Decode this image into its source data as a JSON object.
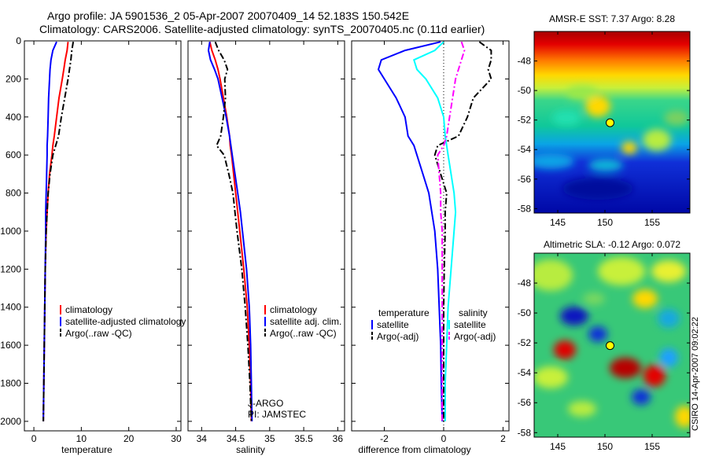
{
  "header": {
    "line1": "Argo profile: JA 5901536_2 05-Apr-2007 20070409_14 52.183S 150.542E",
    "line2": "Climatology: CARS2006. Satellite-adjusted climatology: synTS_20070405.nc (0.11d earlier)"
  },
  "stamp": "CSIRO 14-Apr-2007 09:02:22",
  "colors": {
    "climatology": "#ff0000",
    "satellite": "#0000ff",
    "argo": "#000000",
    "salinity_satellite": "#00ffff",
    "salinity_argo": "#ff00ff"
  },
  "chart_data": [
    {
      "type": "line",
      "xlabel": "temperature",
      "ylabel": "",
      "xlim": [
        -2,
        31
      ],
      "ylim": [
        2050,
        0
      ],
      "y_reversed": true,
      "xticks": [
        0,
        10,
        20,
        30
      ],
      "yticks": [
        0,
        200,
        400,
        600,
        800,
        1000,
        1200,
        1400,
        1600,
        1800,
        2000
      ],
      "depth": [
        5,
        50,
        100,
        150,
        200,
        300,
        400,
        500,
        550,
        600,
        700,
        800,
        900,
        1000,
        1200,
        1400,
        1600,
        1800,
        2000
      ],
      "series": [
        {
          "name": "climatology",
          "color": "#ff0000",
          "style": "solid",
          "values": [
            7.2,
            7.0,
            6.6,
            6.3,
            6.0,
            5.3,
            4.8,
            4.3,
            4.0,
            3.8,
            3.3,
            3.0,
            2.8,
            2.6,
            2.4,
            2.3,
            2.2,
            2.1,
            2.0
          ]
        },
        {
          "name": "satellite-adjusted climatology",
          "color": "#0000ff",
          "style": "solid",
          "values": [
            4.8,
            4.0,
            3.6,
            3.4,
            3.3,
            3.1,
            3.0,
            2.9,
            2.8,
            2.8,
            2.7,
            2.6,
            2.5,
            2.5,
            2.4,
            2.3,
            2.2,
            2.1,
            2.0
          ]
        },
        {
          "name": "Argo(..raw -QC)",
          "color": "#000000",
          "style": "dashdot",
          "values": [
            8.3,
            8.0,
            7.8,
            7.5,
            7.2,
            6.5,
            5.8,
            5.2,
            4.6,
            4.0,
            3.4,
            3.0,
            2.8,
            2.6,
            2.4,
            2.3,
            2.2,
            2.1,
            2.0
          ]
        }
      ],
      "legend": {
        "position": "bottom-right",
        "entries": [
          "climatology",
          "satellite-adjusted climatology",
          "Argo(..raw -QC)"
        ]
      }
    },
    {
      "type": "line",
      "xlabel": "salinity",
      "ylabel": "",
      "xlim": [
        33.8,
        36.1
      ],
      "ylim": [
        2050,
        0
      ],
      "y_reversed": true,
      "xticks": [
        34,
        34.5,
        35,
        35.5,
        36
      ],
      "depth": [
        5,
        50,
        100,
        150,
        200,
        300,
        400,
        500,
        550,
        600,
        700,
        800,
        900,
        1000,
        1200,
        1400,
        1600,
        1800,
        2000
      ],
      "series": [
        {
          "name": "climatology",
          "color": "#ff0000",
          "style": "solid",
          "values": [
            34.12,
            34.15,
            34.2,
            34.24,
            34.27,
            34.32,
            34.37,
            34.41,
            34.42,
            34.44,
            34.47,
            34.5,
            34.53,
            34.56,
            34.62,
            34.67,
            34.7,
            34.72,
            34.73
          ]
        },
        {
          "name": "satellite adj. clim.",
          "color": "#0000ff",
          "style": "solid",
          "values": [
            34.12,
            34.1,
            34.13,
            34.19,
            34.24,
            34.3,
            34.36,
            34.41,
            34.43,
            34.45,
            34.49,
            34.53,
            34.57,
            34.6,
            34.66,
            34.7,
            34.72,
            34.73,
            34.74
          ]
        },
        {
          "name": "Argo(..raw -QC)",
          "color": "#000000",
          "style": "dashdot",
          "values": [
            34.2,
            34.25,
            34.33,
            34.38,
            34.34,
            34.35,
            34.32,
            34.28,
            34.22,
            34.33,
            34.4,
            34.46,
            34.49,
            34.52,
            34.59,
            34.64,
            34.68,
            34.71,
            34.73
          ]
        }
      ],
      "legend": {
        "position": "bottom-right",
        "entries": [
          "climatology",
          "satellite adj. clim.",
          "Argo(..raw -QC)"
        ]
      },
      "annotations": [
        "J-ARGO",
        "PI: JAMSTEC"
      ]
    },
    {
      "type": "line",
      "xlabel": "difference from climatology",
      "ylabel": "",
      "xlim": [
        -3.1,
        2.2
      ],
      "ylim": [
        2050,
        0
      ],
      "y_reversed": true,
      "xticks": [
        -2,
        0,
        2
      ],
      "reference_line_x": 0,
      "depth": [
        5,
        50,
        100,
        150,
        200,
        300,
        400,
        500,
        550,
        600,
        700,
        800,
        900,
        1000,
        1200,
        1400,
        1600,
        1800,
        2000
      ],
      "series": [
        {
          "name": "temperature satellite",
          "color": "#0000ff",
          "style": "solid",
          "values": [
            -0.1,
            -1.3,
            -2.1,
            -2.2,
            -2.0,
            -1.6,
            -1.3,
            -1.2,
            -1.0,
            -0.9,
            -0.7,
            -0.5,
            -0.4,
            -0.3,
            -0.2,
            -0.15,
            -0.1,
            -0.08,
            -0.05
          ]
        },
        {
          "name": "temperature Argo(-adj)",
          "color": "#000000",
          "style": "dashdot",
          "values": [
            1.2,
            1.6,
            1.6,
            1.5,
            1.6,
            1.0,
            0.8,
            0.5,
            -0.2,
            -0.3,
            -0.1,
            0.1,
            0.05,
            0.05,
            0.02,
            0.0,
            0.0,
            0.0,
            0.0
          ]
        },
        {
          "name": "salinity satellite",
          "color": "#00ffff",
          "style": "solid",
          "values": [
            0.0,
            -0.3,
            -1.0,
            -0.9,
            -0.6,
            -0.2,
            0.0,
            0.05,
            0.1,
            0.15,
            0.25,
            0.35,
            0.4,
            0.35,
            0.25,
            0.15,
            0.1,
            0.05,
            0.05
          ]
        },
        {
          "name": "salinity Argo(-adj)",
          "color": "#ff00ff",
          "style": "dashdot",
          "values": [
            0.6,
            0.7,
            0.6,
            0.5,
            0.4,
            0.3,
            0.2,
            0.1,
            0.0,
            -0.2,
            -0.15,
            -0.1,
            -0.1,
            -0.05,
            -0.05,
            -0.05,
            -0.05,
            -0.05,
            -0.05
          ]
        }
      ],
      "legend": {
        "position": "bottom",
        "headings": [
          "temperature",
          "salinity"
        ],
        "entries": [
          "satellite",
          "Argo(-adj)",
          "satellite",
          "Argo(-adj)"
        ]
      }
    },
    {
      "type": "heatmap",
      "title": "AMSR-E SST: 7.37 Argo: 8.28",
      "xlim": [
        142.5,
        159
      ],
      "ylim": [
        -58.3,
        -46
      ],
      "xticks": [
        145,
        150,
        155
      ],
      "yticks": [
        -48,
        -50,
        -52,
        -54,
        -56,
        -58
      ],
      "colormap": "jet",
      "marker": {
        "lon": 150.542,
        "lat": -52.183
      }
    },
    {
      "type": "heatmap",
      "title": "Altimetric SLA: -0.12 Argo: 0.072",
      "xlim": [
        142.5,
        159
      ],
      "ylim": [
        -58.3,
        -46
      ],
      "xticks": [
        145,
        150,
        155
      ],
      "yticks": [
        -48,
        -50,
        -52,
        -54,
        -56,
        -58
      ],
      "colormap": "jet",
      "marker": {
        "lon": 150.542,
        "lat": -52.183
      }
    }
  ]
}
